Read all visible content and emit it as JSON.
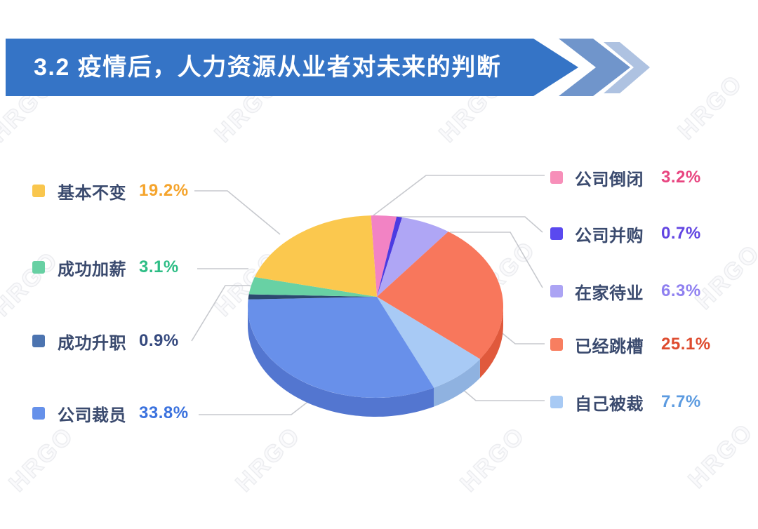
{
  "header": {
    "title": "3.2 疫情后，人力资源从业者对未来的判断"
  },
  "watermark": {
    "text": "HRGO"
  },
  "colors": {
    "background": "#FFFFFF",
    "banner": "#3574C6",
    "banner_chevron_mid": "#7095CB",
    "banner_chevron_light": "#AEC2E1",
    "title_text": "#FFFFFF",
    "label_text": "#3A4A6E",
    "leader_line": "#C7C9CE"
  },
  "chart_data": {
    "type": "pie",
    "title": "疫情后，人力资源从业者对未来的判断",
    "unit": "%",
    "style": "3d-pie",
    "legend_position": "left-right",
    "start_angle_deg": -2,
    "clockwise": true,
    "slices": [
      {
        "label": "公司倒闭",
        "value": 3.2,
        "display": "3.2%",
        "slice_color": "#F283C4",
        "swatch_color": "#F78FB9",
        "value_color": "#E84580",
        "legend": "right"
      },
      {
        "label": "公司并购",
        "value": 0.7,
        "display": "0.7%",
        "slice_color": "#4B3BE1",
        "swatch_color": "#5A49EF",
        "value_color": "#6245E2",
        "legend": "right"
      },
      {
        "label": "在家待业",
        "value": 6.3,
        "display": "6.3%",
        "slice_color": "#AFA6F5",
        "swatch_color": "#ACA4F4",
        "value_color": "#8F80F0",
        "legend": "right"
      },
      {
        "label": "已经跳槽",
        "value": 25.1,
        "display": "25.1%",
        "slice_color": "#F8775C",
        "rim_color": "#E0593C",
        "swatch_color": "#F87E60",
        "value_color": "#DE4B2E",
        "legend": "right"
      },
      {
        "label": "自己被裁",
        "value": 7.7,
        "display": "7.7%",
        "slice_color": "#A8CAF5",
        "rim_color": "#8FB2E0",
        "swatch_color": "#A8CAF4",
        "value_color": "#5C9BE0",
        "legend": "right"
      },
      {
        "label": "公司裁员",
        "value": 33.8,
        "display": "33.8%",
        "slice_color": "#6890EA",
        "rim_color": "#5376D0",
        "swatch_color": "#6691EA",
        "value_color": "#3B72DE",
        "legend": "left"
      },
      {
        "label": "成功升职",
        "value": 0.9,
        "display": "0.9%",
        "slice_color": "#2C4870",
        "swatch_color": "#4C74B0",
        "value_color": "#35497E",
        "legend": "left"
      },
      {
        "label": "成功加薪",
        "value": 3.1,
        "display": "3.1%",
        "slice_color": "#68D1A4",
        "swatch_color": "#67D0A3",
        "value_color": "#2DBD85",
        "legend": "left"
      },
      {
        "label": "基本不变",
        "value": 19.2,
        "display": "19.2%",
        "slice_color": "#FBC84E",
        "swatch_color": "#F9C64D",
        "value_color": "#F5A42C",
        "legend": "left"
      }
    ],
    "legend_left_order": [
      8,
      7,
      6,
      5
    ],
    "legend_right_order": [
      0,
      1,
      2,
      3,
      4
    ]
  }
}
